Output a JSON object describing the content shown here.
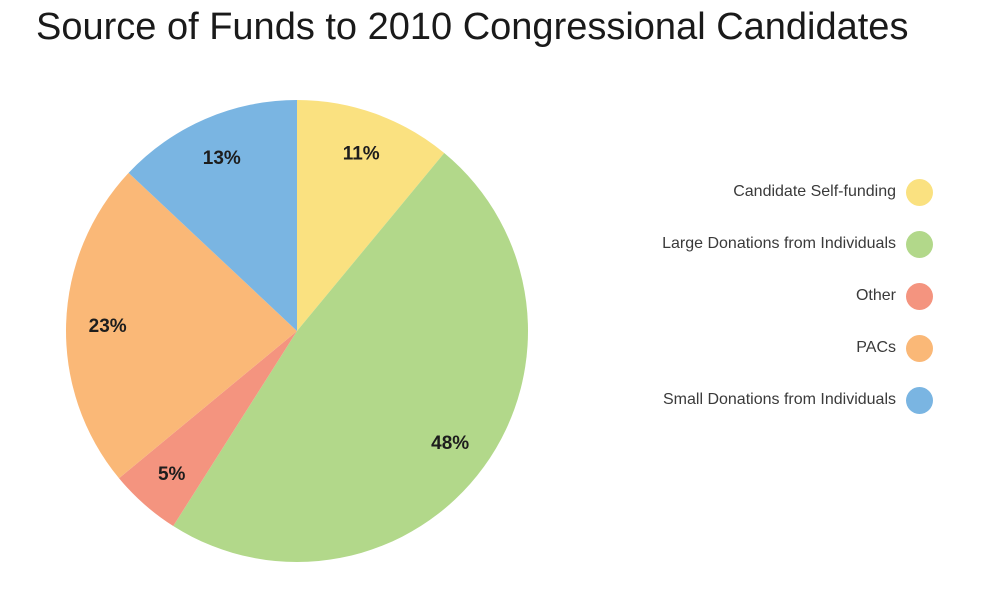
{
  "title": "Source of Funds to 2010 Congressional Candidates",
  "chart_data": {
    "type": "pie",
    "title": "Source of Funds to 2010 Congressional Candidates",
    "direction": "clockwise",
    "start_angle_deg": 0,
    "legend_position": "right",
    "data_label_format": "percent",
    "slices": [
      {
        "label": "Candidate Self-funding",
        "value": 11,
        "data_label": "11%",
        "color": "#FAE180"
      },
      {
        "label": "Large Donations from Individuals",
        "value": 48,
        "data_label": "48%",
        "color": "#B2D88A"
      },
      {
        "label": "Other",
        "value": 5,
        "data_label": "5%",
        "color": "#F4947F"
      },
      {
        "label": "PACs",
        "value": 23,
        "data_label": "23%",
        "color": "#FAB877"
      },
      {
        "label": "Small Donations from Individuals",
        "value": 13,
        "data_label": "13%",
        "color": "#7AB5E2"
      }
    ]
  }
}
